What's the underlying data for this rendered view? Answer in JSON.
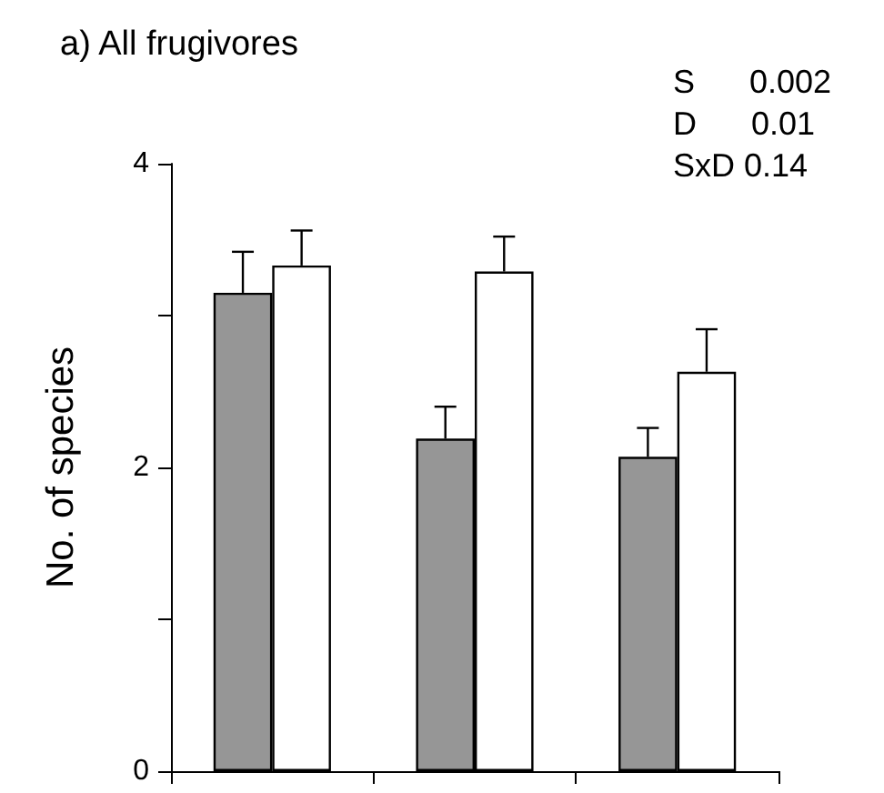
{
  "chart_data": {
    "type": "bar",
    "title": "a) All frugivores",
    "ylabel": "No. of species",
    "categories": [
      null,
      null,
      null
    ],
    "series": [
      {
        "color": "#969696",
        "values": [
          3.15,
          2.19,
          2.07
        ],
        "errors": [
          [
            3.15,
            3.42
          ],
          [
            2.19,
            2.4
          ],
          [
            2.07,
            2.26
          ]
        ]
      },
      {
        "color": "#ffffff",
        "values": [
          3.33,
          3.29,
          2.63
        ],
        "errors": [
          [
            3.33,
            3.56
          ],
          [
            3.29,
            3.52
          ],
          [
            2.63,
            2.91
          ]
        ]
      }
    ],
    "ylim": [
      0,
      4
    ],
    "yticks": [
      0,
      {
        "value": 1,
        "label": null
      },
      2,
      {
        "value": 3,
        "label": null
      },
      4
    ],
    "annotations": [
      "S      0.002",
      "D      0.01",
      "SxD 0.14"
    ]
  }
}
